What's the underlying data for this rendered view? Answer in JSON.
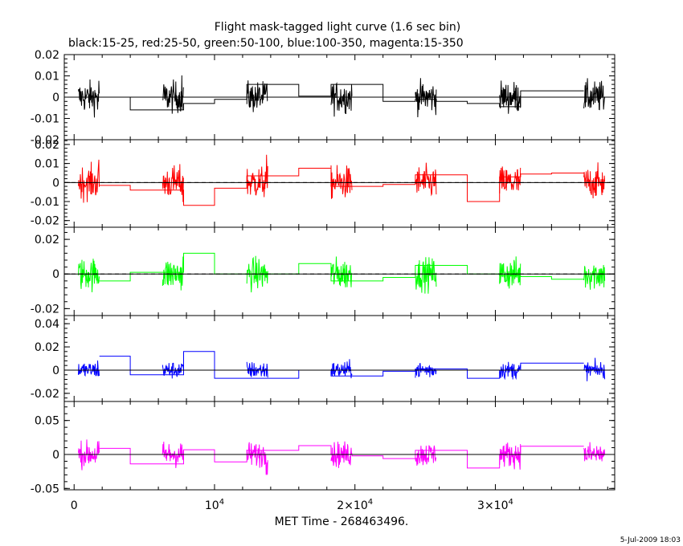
{
  "title": "Flight mask-tagged light curve (1.6 sec bin)",
  "subtitle": "black:15-25, red:25-50, green:50-100, blue:100-350, magenta:15-350",
  "xlabel": "MET Time - 268463496.",
  "timestamp": "5-Jul-2009 18:03",
  "chart_data": [
    {
      "type": "line",
      "series": [
        {
          "name": "15-25",
          "color": "#000000"
        }
      ],
      "ylim": [
        -0.02,
        0.02
      ],
      "yticks": [
        0.02,
        0.01,
        0,
        -0.01,
        -0.02
      ],
      "yticklabels": [
        "0.02",
        "0.01",
        "0",
        "-0.01",
        "-0.02"
      ],
      "xlim": [
        -700,
        38500
      ],
      "orbits": [
        [
          300,
          1800
        ],
        [
          6300,
          7800
        ],
        [
          12300,
          13800
        ],
        [
          18300,
          19800
        ],
        [
          24300,
          25800
        ],
        [
          30300,
          31800
        ],
        [
          36300,
          37800
        ]
      ],
      "amplitude": 0.012,
      "step_x": [
        1800,
        4000,
        6300,
        7800,
        10000,
        12300,
        13800,
        16000,
        18300,
        19800,
        22000,
        24300,
        25800,
        28000,
        30300,
        31800,
        34000,
        36300
      ],
      "step_y": [
        0,
        -0.006,
        -0.006,
        -0.003,
        -0.001,
        0.006,
        0.006,
        0.0005,
        0.006,
        0.006,
        -0.002,
        -0.001,
        -0.002,
        -0.003,
        -0.0045,
        0.003,
        0.003
      ],
      "zero_line": true
    },
    {
      "type": "line",
      "series": [
        {
          "name": "25-50",
          "color": "#ff0000"
        }
      ],
      "ylim": [
        -0.0235,
        0.0225
      ],
      "yticks": [
        0.02,
        0.01,
        0,
        -0.01,
        -0.02
      ],
      "yticklabels": [
        "0.02",
        "0.01",
        "0",
        "-0.01",
        "-0.02"
      ],
      "xlim": [
        -700,
        38500
      ],
      "orbits": [
        [
          300,
          1800
        ],
        [
          6300,
          7800
        ],
        [
          12300,
          13800
        ],
        [
          18300,
          19800
        ],
        [
          24300,
          25800
        ],
        [
          30300,
          31800
        ],
        [
          36300,
          37800
        ]
      ],
      "amplitude": 0.014,
      "step_x": [
        1800,
        4000,
        6300,
        7800,
        10000,
        12300,
        13800,
        16000,
        18300,
        19800,
        22000,
        24300,
        25800,
        28000,
        30300,
        31800,
        34000,
        36300
      ],
      "step_y": [
        -0.0015,
        -0.004,
        -0.004,
        -0.012,
        -0.003,
        0.0035,
        0.0035,
        0.0075,
        -0.002,
        -0.002,
        -0.001,
        0.004,
        0.004,
        -0.01,
        0.003,
        0.0045,
        0.005
      ],
      "zero_line": true
    },
    {
      "type": "line",
      "series": [
        {
          "name": "50-100",
          "color": "#00ff00"
        }
      ],
      "ylim": [
        -0.024,
        0.027
      ],
      "yticks": [
        0.02,
        0,
        -0.02
      ],
      "yticklabels": [
        "0.02",
        "0",
        "-0.02"
      ],
      "xlim": [
        -700,
        38500
      ],
      "orbits": [
        [
          300,
          1800
        ],
        [
          6300,
          7800
        ],
        [
          12300,
          13800
        ],
        [
          18300,
          19800
        ],
        [
          24300,
          25800
        ],
        [
          30300,
          31800
        ],
        [
          36300,
          37800
        ]
      ],
      "amplitude": 0.015,
      "step_x": [
        1800,
        4000,
        6300,
        7800,
        10000,
        12300,
        13800,
        16000,
        18300,
        19800,
        22000,
        24300,
        25800,
        28000,
        30300,
        31800,
        34000,
        36300
      ],
      "step_y": [
        -0.004,
        0.001,
        0.001,
        0.012,
        0.0,
        0.0,
        0.0,
        0.006,
        -0.004,
        -0.004,
        -0.002,
        0.005,
        0.005,
        0.0,
        -0.001,
        -0.0015,
        -0.003
      ],
      "zero_line": true
    },
    {
      "type": "line",
      "series": [
        {
          "name": "100-350",
          "color": "#0000ff"
        }
      ],
      "ylim": [
        -0.027,
        0.047
      ],
      "yticks": [
        0.04,
        0.02,
        0,
        -0.02
      ],
      "yticklabels": [
        "0.04",
        "0.02",
        "0",
        "-0.02"
      ],
      "xlim": [
        -700,
        38500
      ],
      "orbits": [
        [
          300,
          1800
        ],
        [
          6300,
          7800
        ],
        [
          12300,
          13800
        ],
        [
          18300,
          19800
        ],
        [
          24300,
          25800
        ],
        [
          30300,
          31800
        ],
        [
          36300,
          37800
        ]
      ],
      "amplitude": 0.012,
      "step_x": [
        1800,
        4000,
        6300,
        7800,
        10000,
        12300,
        13800,
        16000,
        18300,
        19800,
        22000,
        24300,
        25800,
        28000,
        30300,
        31800,
        34000,
        36300
      ],
      "step_y": [
        0.012,
        -0.004,
        -0.004,
        0.016,
        -0.007,
        -0.007,
        -0.007,
        0.0,
        -0.005,
        -0.005,
        -0.001,
        0.001,
        0.001,
        -0.007,
        0.0,
        0.006,
        0.006
      ],
      "zero_line": true
    },
    {
      "type": "line",
      "series": [
        {
          "name": "15-350",
          "color": "#ff00ff"
        }
      ],
      "ylim": [
        -0.052,
        0.078
      ],
      "yticks": [
        0.05,
        0,
        -0.05
      ],
      "yticklabels": [
        "0.05",
        "0",
        "-0.05"
      ],
      "xlim": [
        -700,
        38500
      ],
      "orbits": [
        [
          300,
          1800
        ],
        [
          6300,
          7800
        ],
        [
          12300,
          13800
        ],
        [
          18300,
          19800
        ],
        [
          24300,
          25800
        ],
        [
          30300,
          31800
        ],
        [
          36300,
          37800
        ]
      ],
      "amplitude": 0.03,
      "step_x": [
        1800,
        4000,
        6300,
        7800,
        10000,
        12300,
        13800,
        16000,
        18300,
        19800,
        22000,
        24300,
        25800,
        28000,
        30300,
        31800,
        34000,
        36300
      ],
      "step_y": [
        0.009,
        -0.014,
        -0.014,
        0.007,
        -0.011,
        0.006,
        0.006,
        0.013,
        0.0,
        -0.002,
        -0.006,
        0.006,
        0.006,
        -0.02,
        0.0,
        0.012,
        0.012
      ],
      "zero_line": true
    }
  ],
  "xaxis": {
    "ticks": [
      0,
      10000,
      20000,
      30000
    ],
    "labels": [
      {
        "base": "0",
        "exp": ""
      },
      {
        "base": "10",
        "exp": "4"
      },
      {
        "base": "2×10",
        "exp": "4"
      },
      {
        "base": "3×10",
        "exp": "4"
      }
    ]
  }
}
